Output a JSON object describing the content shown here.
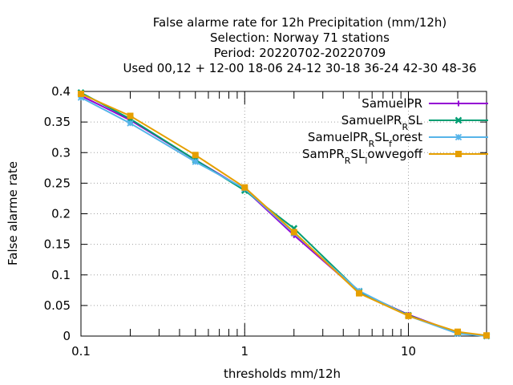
{
  "chart_data": {
    "type": "line",
    "title_lines": [
      "False alarme rate  for 12h Precipitation (mm/12h)",
      "Selection: Norway     71 stations",
      "Period: 20220702-20220709",
      "Used  00,12  + 12-00 18-06 24-12 30-18 36-24 42-30 48-36"
    ],
    "xlabel": "thresholds mm/12h",
    "ylabel": "False alarme rate",
    "x_scale": "log",
    "xlim": [
      0.1,
      30
    ],
    "ylim": [
      0,
      0.4
    ],
    "x_ticks": [
      0.1,
      1,
      10
    ],
    "x_tick_labels": [
      "0.1",
      "1",
      "10"
    ],
    "y_ticks": [
      0,
      0.05,
      0.1,
      0.15,
      0.2,
      0.25,
      0.3,
      0.35,
      0.4
    ],
    "y_tick_labels": [
      "0",
      "0.05",
      "0.1",
      "0.15",
      "0.2",
      "0.25",
      "0.3",
      "0.35",
      "0.4"
    ],
    "grid": true,
    "legend_position": "top-right",
    "series": [
      {
        "name": "SamuelPR",
        "name_base": "SamuelPR",
        "color": "#9400d3",
        "marker": "plus",
        "x": [
          0.1,
          0.2,
          0.5,
          1,
          2,
          5,
          10,
          20,
          30
        ],
        "y": [
          0.393,
          0.353,
          0.288,
          0.24,
          0.165,
          0.072,
          0.035,
          0.005,
          0.0
        ]
      },
      {
        "name": "SamuelPR_RSL",
        "name_parts": [
          [
            "SamuelPR",
            ""
          ],
          [
            "R",
            "sub"
          ],
          [
            "SL",
            ""
          ]
        ],
        "color": "#009e73",
        "marker": "x",
        "x": [
          0.1,
          0.2,
          0.5,
          1,
          2,
          5,
          10,
          20,
          30
        ],
        "y": [
          0.398,
          0.355,
          0.288,
          0.238,
          0.176,
          0.073,
          0.034,
          0.005,
          0.0
        ]
      },
      {
        "name": "SamuelPR_RSL_forest",
        "name_parts": [
          [
            "SamuelPR",
            ""
          ],
          [
            "R",
            "sub"
          ],
          [
            "SL",
            ""
          ],
          [
            "f",
            "sub"
          ],
          [
            "orest",
            ""
          ]
        ],
        "color": "#56b4e9",
        "marker": "star",
        "x": [
          0.1,
          0.2,
          0.5,
          1,
          2,
          5,
          10,
          20,
          30
        ],
        "y": [
          0.39,
          0.348,
          0.285,
          0.241,
          0.168,
          0.074,
          0.033,
          0.004,
          0.0
        ]
      },
      {
        "name": "SamPR_RSL_lowvegoff",
        "name_parts": [
          [
            "SamPR",
            ""
          ],
          [
            "R",
            "sub"
          ],
          [
            "SL",
            ""
          ],
          [
            "l",
            "sub"
          ],
          [
            "owvegoff",
            ""
          ]
        ],
        "color": "#e69f00",
        "marker": "square",
        "x": [
          0.1,
          0.2,
          0.5,
          1,
          2,
          5,
          10,
          20,
          30
        ],
        "y": [
          0.396,
          0.36,
          0.296,
          0.243,
          0.17,
          0.07,
          0.033,
          0.007,
          0.001
        ]
      }
    ]
  }
}
